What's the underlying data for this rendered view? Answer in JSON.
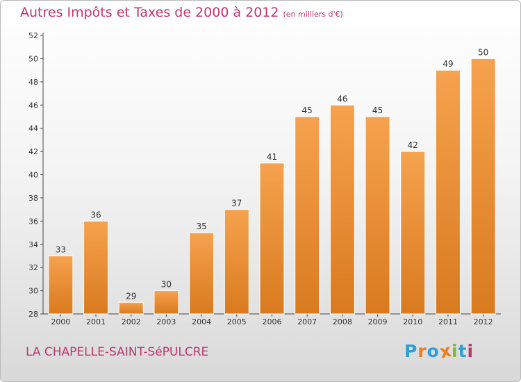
{
  "header": {
    "title": "Autres Impôts et Taxes de 2000 à 2012",
    "unit": "(en milliers d'€)"
  },
  "footer": {
    "commune": "LA CHAPELLE-SAINT-SéPULCRE",
    "logo": "Proxiti"
  },
  "colors": {
    "title": "#c0356b",
    "bar_top": "#f6a24e",
    "bar_bottom": "#d97a1f",
    "logo_letters": [
      "#2e9fd8",
      "#ef7d1a",
      "#2e9fd8",
      "#ef7d1a",
      "#7cb92e",
      "#2e9fd8",
      "#c0356b"
    ]
  },
  "chart_data": {
    "type": "bar",
    "categories": [
      "2000",
      "2001",
      "2002",
      "2003",
      "2004",
      "2005",
      "2006",
      "2007",
      "2008",
      "2009",
      "2010",
      "2011",
      "2012"
    ],
    "values": [
      33,
      36,
      29,
      30,
      35,
      37,
      41,
      45,
      46,
      45,
      42,
      49,
      50
    ],
    "title": "Autres Impôts et Taxes de 2000 à 2012",
    "subtitle": "(en milliers d'€)",
    "xlabel": "",
    "ylabel": "",
    "ylim": [
      28,
      52
    ],
    "yticks": [
      28,
      30,
      32,
      34,
      36,
      38,
      40,
      42,
      44,
      46,
      48,
      50,
      52
    ],
    "grid": false,
    "data_labels": true
  }
}
